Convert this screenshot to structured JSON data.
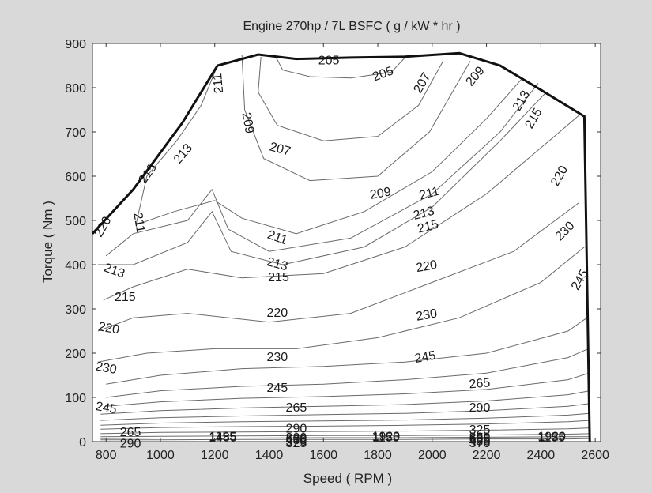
{
  "chart_data": {
    "type": "contour",
    "title": "Engine 270hp / 7L  BSFC ( g / kW * hr )",
    "xlabel": "Speed ( RPM )",
    "ylabel": "Torque ( Nm )",
    "xlim": [
      750,
      2620
    ],
    "ylim": [
      0,
      900
    ],
    "xticks": [
      "800",
      "1000",
      "1200",
      "1400",
      "1600",
      "1800",
      "2000",
      "2200",
      "2400",
      "2600"
    ],
    "yticks": [
      "0",
      "100",
      "200",
      "300",
      "400",
      "500",
      "600",
      "700",
      "800",
      "900"
    ],
    "grid": false,
    "max_torque_curve": [
      [
        750,
        470
      ],
      [
        900,
        570
      ],
      [
        1080,
        720
      ],
      [
        1210,
        850
      ],
      [
        1360,
        875
      ],
      [
        1500,
        865
      ],
      [
        1700,
        868
      ],
      [
        1900,
        870
      ],
      [
        2100,
        878
      ],
      [
        2250,
        850
      ],
      [
        2400,
        795
      ],
      [
        2560,
        735
      ],
      [
        2580,
        0
      ]
    ],
    "contour_levels": [
      205,
      207,
      209,
      211,
      213,
      215,
      220,
      230,
      245,
      265,
      290,
      325,
      370,
      430,
      505,
      605,
      820,
      1155,
      1485,
      1920
    ],
    "contours": [
      {
        "level": "205",
        "points": [
          [
            1420,
            875
          ],
          [
            1450,
            840
          ],
          [
            1550,
            825
          ],
          [
            1700,
            822
          ],
          [
            1850,
            835
          ],
          [
            1900,
            868
          ]
        ]
      },
      {
        "level": "207",
        "points": [
          [
            1370,
            870
          ],
          [
            1360,
            790
          ],
          [
            1430,
            715
          ],
          [
            1600,
            680
          ],
          [
            1800,
            690
          ],
          [
            1950,
            760
          ],
          [
            2040,
            860
          ]
        ]
      },
      {
        "level": "209",
        "points": [
          [
            1300,
            875
          ],
          [
            1310,
            750
          ],
          [
            1380,
            640
          ],
          [
            1550,
            590
          ],
          [
            1800,
            600
          ],
          [
            1990,
            700
          ],
          [
            2140,
            860
          ]
        ]
      },
      {
        "level": "211",
        "points": [
          [
            1210,
            850
          ],
          [
            1150,
            760
          ],
          [
            1060,
            680
          ],
          [
            950,
            600
          ],
          [
            910,
            490
          ],
          [
            1050,
            520
          ],
          [
            1200,
            545
          ],
          [
            1300,
            505
          ],
          [
            1500,
            470
          ],
          [
            1750,
            520
          ],
          [
            2000,
            610
          ],
          [
            2200,
            730
          ],
          [
            2330,
            820
          ]
        ]
      },
      {
        "level": "213",
        "points": [
          [
            800,
            420
          ],
          [
            900,
            470
          ],
          [
            1100,
            500
          ],
          [
            1190,
            570
          ],
          [
            1250,
            480
          ],
          [
            1400,
            430
          ],
          [
            1700,
            460
          ],
          [
            2000,
            560
          ],
          [
            2250,
            700
          ],
          [
            2390,
            810
          ]
        ]
      },
      {
        "level": "215",
        "points": [
          [
            770,
            400
          ],
          [
            900,
            400
          ],
          [
            1100,
            450
          ],
          [
            1190,
            520
          ],
          [
            1260,
            430
          ],
          [
            1450,
            400
          ],
          [
            1750,
            440
          ],
          [
            2000,
            530
          ],
          [
            2250,
            680
          ],
          [
            2420,
            790
          ]
        ]
      },
      {
        "level": "220",
        "points": [
          [
            790,
            320
          ],
          [
            900,
            350
          ],
          [
            1100,
            390
          ],
          [
            1300,
            370
          ],
          [
            1600,
            380
          ],
          [
            1900,
            440
          ],
          [
            2200,
            560
          ],
          [
            2450,
            690
          ],
          [
            2545,
            740
          ]
        ]
      },
      {
        "level": "230",
        "points": [
          [
            770,
            250
          ],
          [
            900,
            280
          ],
          [
            1100,
            290
          ],
          [
            1400,
            270
          ],
          [
            1700,
            290
          ],
          [
            2000,
            360
          ],
          [
            2300,
            430
          ],
          [
            2540,
            540
          ]
        ]
      },
      {
        "level": "245",
        "points": [
          [
            770,
            180
          ],
          [
            950,
            200
          ],
          [
            1200,
            210
          ],
          [
            1500,
            210
          ],
          [
            1800,
            235
          ],
          [
            2100,
            280
          ],
          [
            2400,
            360
          ],
          [
            2560,
            440
          ]
        ]
      },
      {
        "level": "265",
        "points": [
          [
            800,
            130
          ],
          [
            1000,
            150
          ],
          [
            1300,
            165
          ],
          [
            1600,
            170
          ],
          [
            1900,
            180
          ],
          [
            2200,
            200
          ],
          [
            2500,
            250
          ],
          [
            2570,
            280
          ]
        ]
      },
      {
        "level": "290",
        "points": [
          [
            800,
            100
          ],
          [
            1000,
            115
          ],
          [
            1300,
            125
          ],
          [
            1600,
            130
          ],
          [
            1900,
            140
          ],
          [
            2200,
            155
          ],
          [
            2500,
            190
          ],
          [
            2575,
            210
          ]
        ]
      },
      {
        "level": "325",
        "points": [
          [
            800,
            80
          ],
          [
            1000,
            90
          ],
          [
            1300,
            98
          ],
          [
            1600,
            102
          ],
          [
            1900,
            108
          ],
          [
            2200,
            118
          ],
          [
            2500,
            140
          ],
          [
            2578,
            155
          ]
        ]
      },
      {
        "level": "370",
        "points": [
          [
            780,
            62
          ],
          [
            1000,
            70
          ],
          [
            1300,
            76
          ],
          [
            1600,
            80
          ],
          [
            1900,
            84
          ],
          [
            2200,
            92
          ],
          [
            2500,
            106
          ],
          [
            2580,
            115
          ]
        ]
      },
      {
        "level": "430",
        "points": [
          [
            780,
            48
          ],
          [
            1000,
            54
          ],
          [
            1300,
            58
          ],
          [
            1600,
            61
          ],
          [
            1900,
            64
          ],
          [
            2200,
            70
          ],
          [
            2500,
            80
          ],
          [
            2580,
            86
          ]
        ]
      },
      {
        "level": "505",
        "points": [
          [
            780,
            37
          ],
          [
            1000,
            42
          ],
          [
            1300,
            45
          ],
          [
            1600,
            47
          ],
          [
            1900,
            49
          ],
          [
            2200,
            53
          ],
          [
            2500,
            60
          ],
          [
            2580,
            64
          ]
        ]
      },
      {
        "level": "605",
        "points": [
          [
            780,
            28
          ],
          [
            1000,
            32
          ],
          [
            1300,
            34
          ],
          [
            1600,
            35
          ],
          [
            1900,
            37
          ],
          [
            2200,
            40
          ],
          [
            2500,
            45
          ],
          [
            2580,
            48
          ]
        ]
      },
      {
        "level": "820",
        "points": [
          [
            780,
            18
          ],
          [
            1000,
            21
          ],
          [
            1300,
            22
          ],
          [
            1600,
            23
          ],
          [
            1900,
            24
          ],
          [
            2200,
            26
          ],
          [
            2500,
            29
          ],
          [
            2580,
            31
          ]
        ]
      },
      {
        "level": "1155",
        "points": [
          [
            780,
            11
          ],
          [
            1000,
            12
          ],
          [
            1300,
            13
          ],
          [
            1600,
            14
          ],
          [
            1900,
            14
          ],
          [
            2200,
            15
          ],
          [
            2500,
            17
          ],
          [
            2580,
            18
          ]
        ]
      },
      {
        "level": "1485",
        "points": [
          [
            780,
            7
          ],
          [
            1000,
            8
          ],
          [
            1300,
            8
          ],
          [
            1600,
            9
          ],
          [
            1900,
            9
          ],
          [
            2200,
            10
          ],
          [
            2500,
            11
          ],
          [
            2580,
            11
          ]
        ]
      },
      {
        "level": "1920",
        "points": [
          [
            780,
            4
          ],
          [
            1000,
            4
          ],
          [
            1300,
            5
          ],
          [
            1600,
            5
          ],
          [
            1900,
            5
          ],
          [
            2200,
            6
          ],
          [
            2500,
            6
          ],
          [
            2580,
            7
          ]
        ]
      }
    ],
    "contour_labels": [
      {
        "text": "205",
        "x": 1620,
        "y": 860,
        "rot": 0
      },
      {
        "text": "205",
        "x": 1820,
        "y": 830,
        "rot": -20
      },
      {
        "text": "207",
        "x": 1965,
        "y": 810,
        "rot": -60
      },
      {
        "text": "209",
        "x": 2160,
        "y": 825,
        "rot": -50
      },
      {
        "text": "213",
        "x": 2330,
        "y": 770,
        "rot": -60
      },
      {
        "text": "215",
        "x": 2375,
        "y": 730,
        "rot": -60
      },
      {
        "text": "211",
        "x": 1215,
        "y": 810,
        "rot": -95
      },
      {
        "text": "209",
        "x": 1320,
        "y": 720,
        "rot": 80
      },
      {
        "text": "207",
        "x": 1440,
        "y": 660,
        "rot": 15
      },
      {
        "text": "213",
        "x": 1085,
        "y": 650,
        "rot": -50
      },
      {
        "text": "215",
        "x": 955,
        "y": 605,
        "rot": -55
      },
      {
        "text": "220",
        "x": 2470,
        "y": 600,
        "rot": -60
      },
      {
        "text": "209",
        "x": 1810,
        "y": 560,
        "rot": -10
      },
      {
        "text": "211",
        "x": 1990,
        "y": 560,
        "rot": -15
      },
      {
        "text": "213",
        "x": 1970,
        "y": 515,
        "rot": -15
      },
      {
        "text": "215",
        "x": 1985,
        "y": 485,
        "rot": -15
      },
      {
        "text": "220",
        "x": 790,
        "y": 485,
        "rot": -60
      },
      {
        "text": "211",
        "x": 920,
        "y": 495,
        "rot": 80
      },
      {
        "text": "211",
        "x": 1430,
        "y": 460,
        "rot": 20
      },
      {
        "text": "213",
        "x": 1430,
        "y": 400,
        "rot": 15
      },
      {
        "text": "215",
        "x": 1435,
        "y": 370,
        "rot": 0
      },
      {
        "text": "213",
        "x": 830,
        "y": 385,
        "rot": 20
      },
      {
        "text": "215",
        "x": 870,
        "y": 325,
        "rot": 0
      },
      {
        "text": "220",
        "x": 1980,
        "y": 395,
        "rot": -10
      },
      {
        "text": "220",
        "x": 1430,
        "y": 290,
        "rot": 0
      },
      {
        "text": "230",
        "x": 2490,
        "y": 475,
        "rot": -45
      },
      {
        "text": "245",
        "x": 2545,
        "y": 365,
        "rot": -60
      },
      {
        "text": "230",
        "x": 1980,
        "y": 285,
        "rot": -10
      },
      {
        "text": "220",
        "x": 810,
        "y": 255,
        "rot": 10
      },
      {
        "text": "230",
        "x": 1430,
        "y": 190,
        "rot": 0
      },
      {
        "text": "245",
        "x": 1975,
        "y": 190,
        "rot": -10
      },
      {
        "text": "230",
        "x": 800,
        "y": 165,
        "rot": 10
      },
      {
        "text": "245",
        "x": 1430,
        "y": 120,
        "rot": 0
      },
      {
        "text": "265",
        "x": 2175,
        "y": 130,
        "rot": -5
      },
      {
        "text": "245",
        "x": 800,
        "y": 75,
        "rot": 10
      },
      {
        "text": "265",
        "x": 1500,
        "y": 75,
        "rot": 0
      },
      {
        "text": "290",
        "x": 2175,
        "y": 75,
        "rot": 0
      },
      {
        "text": "265",
        "x": 890,
        "y": 20,
        "rot": 0
      },
      {
        "text": "290",
        "x": 1500,
        "y": 28,
        "rot": 0
      },
      {
        "text": "325",
        "x": 2175,
        "y": 25,
        "rot": 0
      },
      {
        "text": "290",
        "x": 890,
        "y": -8,
        "rot": 0
      },
      {
        "text": "325",
        "x": 1500,
        "y": -12,
        "rot": 0
      },
      {
        "text": "370",
        "x": 2175,
        "y": -12,
        "rot": 0
      },
      {
        "text": "370",
        "x": 1500,
        "y": -38,
        "rot": 0
      },
      {
        "text": "430",
        "x": 2175,
        "y": -45,
        "rot": 0
      },
      {
        "text": "430",
        "x": 1500,
        "y": -62,
        "rot": 0
      },
      {
        "text": "505",
        "x": 2175,
        "y": -72,
        "rot": 0
      },
      {
        "text": "605",
        "x": 1500,
        "y": -82,
        "rot": 0
      },
      {
        "text": "605",
        "x": 2175,
        "y": -92,
        "rot": 0
      },
      {
        "text": "820",
        "x": 1500,
        "y": -100,
        "rot": 0
      },
      {
        "text": "820",
        "x": 2175,
        "y": -110,
        "rot": 0
      },
      {
        "text": "1155",
        "x": 1830,
        "y": -110,
        "rot": 0
      },
      {
        "text": "1155",
        "x": 2440,
        "y": -110,
        "rot": 0
      },
      {
        "text": "1920",
        "x": 1830,
        "y": -122,
        "rot": 0
      },
      {
        "text": "1920",
        "x": 2440,
        "y": -122,
        "rot": 0
      },
      {
        "text": "1485",
        "x": 1230,
        "y": -110,
        "rot": 0
      },
      {
        "text": "1155",
        "x": 1230,
        "y": -122,
        "rot": 0
      }
    ]
  }
}
